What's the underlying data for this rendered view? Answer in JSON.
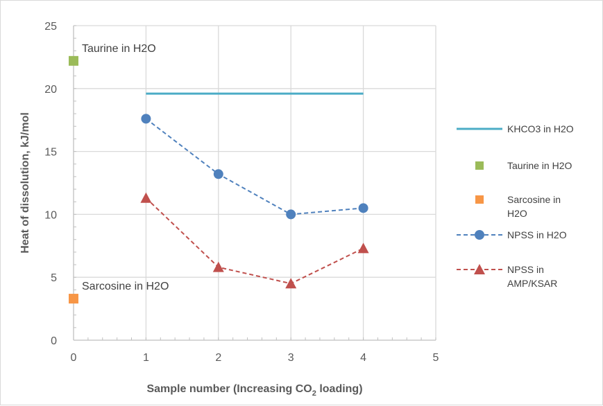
{
  "chart_data": {
    "type": "scatter",
    "xlabel_main": "Sample number (Increasing CO",
    "xlabel_sub": "2",
    "xlabel_tail": " loading)",
    "ylabel": "Heat of dissolution, kJ/mol",
    "xlim": [
      0,
      5
    ],
    "ylim": [
      0,
      25
    ],
    "xticks": [
      "0",
      "1",
      "2",
      "3",
      "4",
      "5"
    ],
    "yticks": [
      "0",
      "5",
      "10",
      "15",
      "20",
      "25"
    ],
    "grid": true,
    "legend_position": "right",
    "series": [
      {
        "name": "KHCO3 in H2O",
        "kind": "line",
        "color": "#4bacc6",
        "dash": false,
        "marker": "none",
        "x": [
          1,
          4
        ],
        "y": [
          19.6,
          19.6
        ]
      },
      {
        "name": "Taurine in H2O",
        "kind": "marker",
        "color": "#9bbb59",
        "marker": "square",
        "x": [
          0
        ],
        "y": [
          22.2
        ]
      },
      {
        "name": "Sarcosine in H2O",
        "kind": "marker",
        "color": "#f79646",
        "marker": "square",
        "x": [
          0
        ],
        "y": [
          3.3
        ]
      },
      {
        "name": "NPSS in H2O",
        "kind": "line",
        "color": "#4f81bd",
        "dash": true,
        "marker": "circle",
        "x": [
          1,
          2,
          3,
          4
        ],
        "y": [
          17.6,
          13.2,
          10.0,
          10.5
        ]
      },
      {
        "name": "NPSS in AMP/KSAR",
        "kind": "line",
        "color": "#c0504d",
        "dash": true,
        "marker": "triangle",
        "x": [
          1,
          2,
          3,
          4
        ],
        "y": [
          11.3,
          5.8,
          4.5,
          7.3
        ]
      }
    ],
    "legend_lines": [
      [
        "KHCO3 in H2O"
      ],
      [
        "Taurine in H2O"
      ],
      [
        "Sarcosine in",
        "H2O"
      ],
      [
        "NPSS in H2O"
      ],
      [
        "NPSS in",
        "AMP/KSAR"
      ]
    ],
    "annotations": [
      {
        "text": "Taurine in H2O",
        "x": 0,
        "y": 22.2
      },
      {
        "text": "Sarcosine in H2O",
        "x": 0,
        "y": 3.3
      }
    ]
  }
}
